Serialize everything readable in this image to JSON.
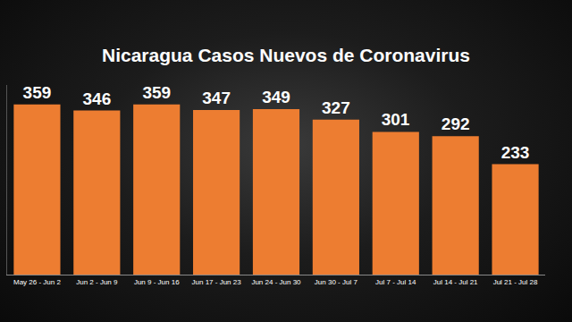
{
  "chart_data": {
    "type": "bar",
    "title": "Nicaragua Casos Nuevos de Coronavirus",
    "categories": [
      "May 26 - Jun 2",
      "Jun 2 - Jun 9",
      "Jun 9 - Jun 16",
      "Jun 17 - Jun 23",
      "Jun 24 - Jun 30",
      "Jun 30 - Jul 7",
      "Jul 7 - Jul 14",
      "Jul 14 - Jul 21",
      "Jul 21 - Jul 28"
    ],
    "values": [
      359,
      346,
      359,
      347,
      349,
      327,
      301,
      292,
      233
    ],
    "color": "#ed7d31",
    "ylim": [
      0,
      400
    ],
    "grid": false,
    "data_labels": true,
    "tick_labels": "x"
  }
}
